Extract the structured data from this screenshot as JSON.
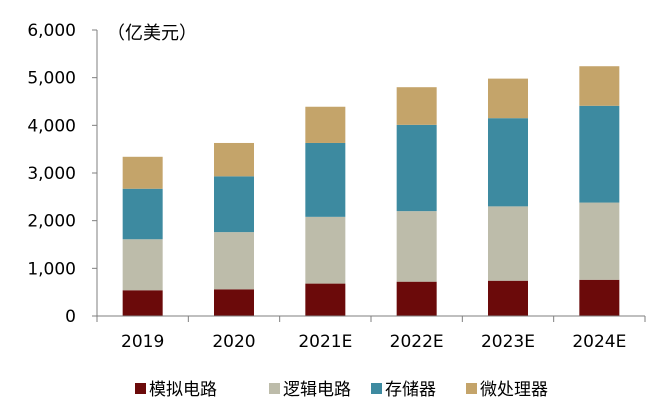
{
  "chart_data": {
    "type": "stacked-bar",
    "unit_label": "（亿美元）",
    "categories": [
      "2019",
      "2020",
      "2021E",
      "2022E",
      "2023E",
      "2024E"
    ],
    "series": [
      {
        "name": "模拟电路",
        "color": "#6b0a0a",
        "values": [
          540,
          560,
          680,
          720,
          740,
          760
        ]
      },
      {
        "name": "逻辑电路",
        "color": "#bdbcaa",
        "values": [
          1070,
          1200,
          1400,
          1480,
          1560,
          1620
        ]
      },
      {
        "name": "存储器",
        "color": "#3d8aa0",
        "values": [
          1060,
          1170,
          1550,
          1810,
          1850,
          2030
        ]
      },
      {
        "name": "微处理器",
        "color": "#c4a46a",
        "values": [
          670,
          700,
          760,
          790,
          830,
          830
        ]
      }
    ],
    "ylim": [
      0,
      6000
    ],
    "yticks": [
      "0",
      "1,000",
      "2,000",
      "3,000",
      "4,000",
      "5,000",
      "6,000"
    ],
    "ytick_values": [
      0,
      1000,
      2000,
      3000,
      4000,
      5000,
      6000
    ],
    "legend_position": "bottom"
  }
}
